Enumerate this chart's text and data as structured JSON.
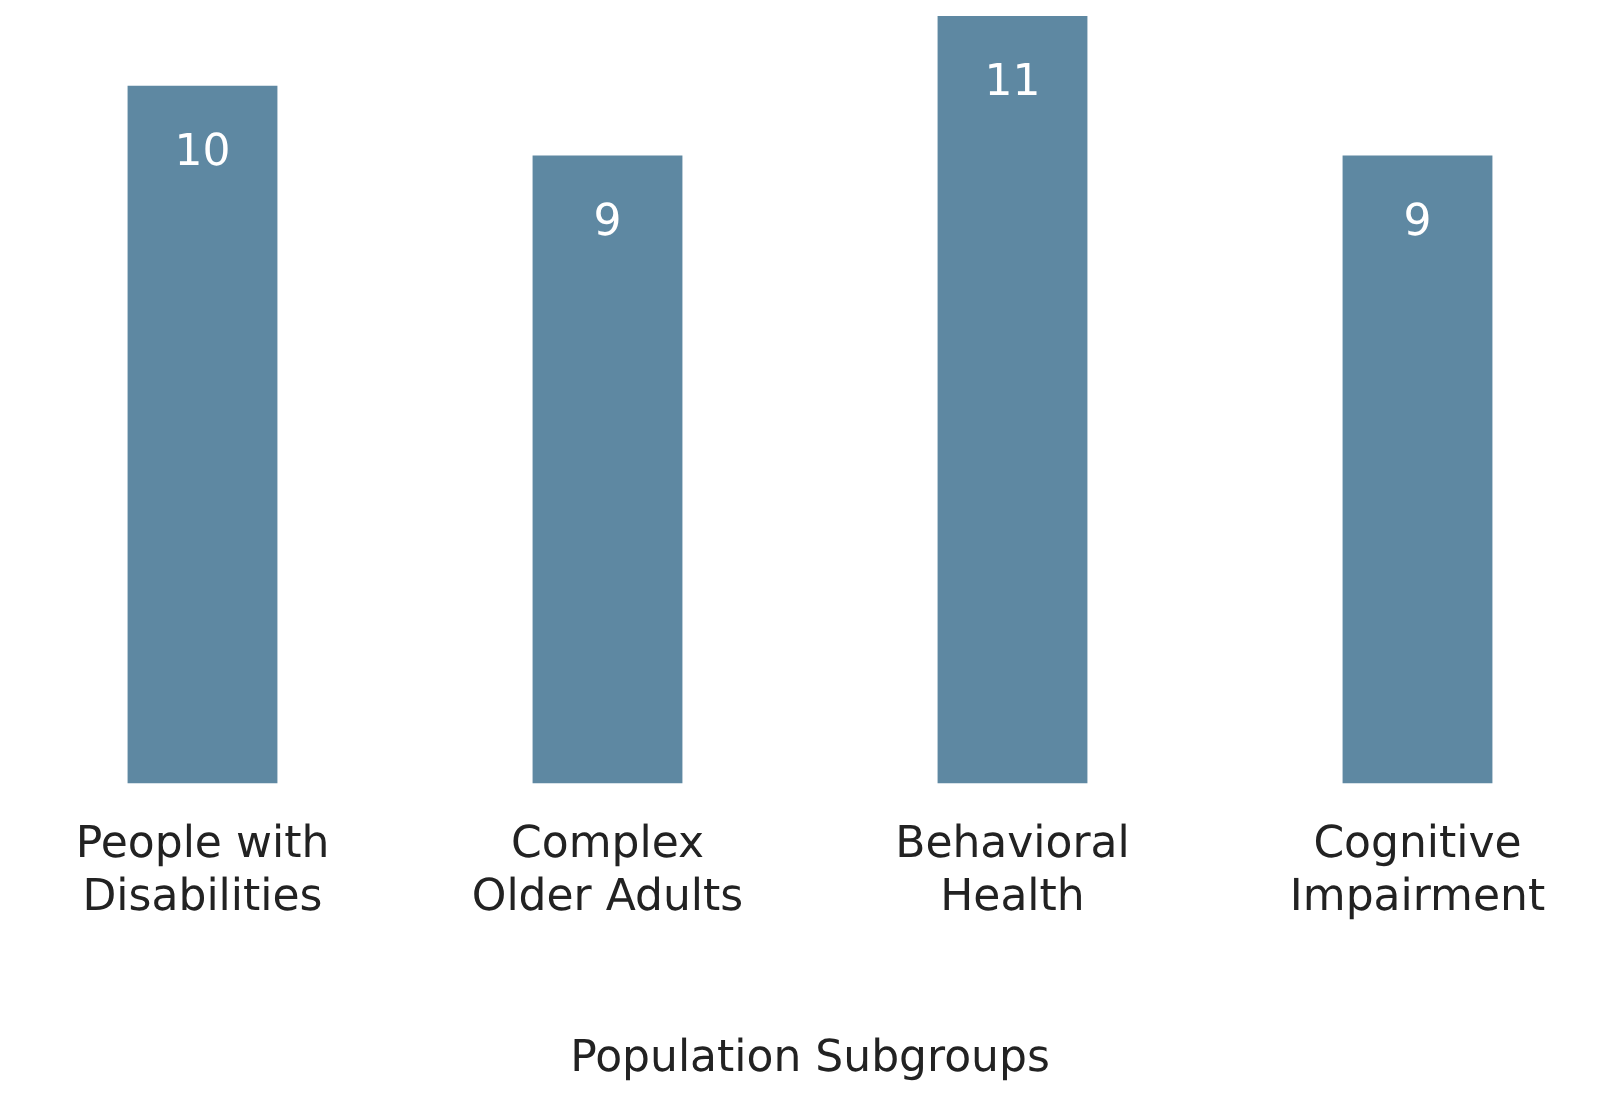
{
  "chart_data": {
    "type": "bar",
    "xlabel": "Population Subgroups",
    "categories": [
      "People with Disabilities",
      "Complex Older Adults",
      "Behavioral Health",
      "Cognitive Impairment"
    ],
    "values": [
      10,
      9,
      11,
      9
    ],
    "color": "#5e88a2",
    "data_labels": true,
    "grid": false,
    "legend": false
  }
}
